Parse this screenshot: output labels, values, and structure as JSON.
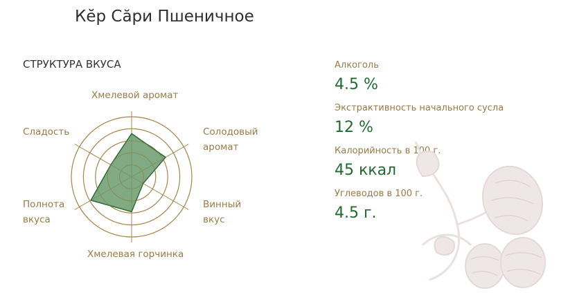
{
  "title": "Кĕр Сăри Пшеничное",
  "taste_section": {
    "heading": "СТРУКТУРА ВКУСА",
    "axes": [
      {
        "label": "Хмелевой аромат",
        "value": 0.72
      },
      {
        "label": "Солодовый аромат",
        "value": 0.65
      },
      {
        "label": "Винный вкус",
        "value": 0.22
      },
      {
        "label": "Хмелевая горчинка",
        "value": 0.58
      },
      {
        "label": "Полнота вкуса",
        "value": 0.78
      },
      {
        "label": "Сладость",
        "value": 0.4
      }
    ],
    "colors": {
      "ring": "#a8874f",
      "fill": "#6b9a6c",
      "stroke": "#2f6a33"
    }
  },
  "stats": [
    {
      "label": "Алкоголь",
      "value": "4.5 %"
    },
    {
      "label": "Экстрактивность начального сусла",
      "value": "12 %"
    },
    {
      "label": "Калорийность в 100 г.",
      "value": "45 ккал"
    },
    {
      "label": "Углеводов в 100 г.",
      "value": "4.5 г."
    }
  ],
  "decoration": {
    "icon": "hop-cones-icon",
    "color": "#e9e0e0"
  }
}
